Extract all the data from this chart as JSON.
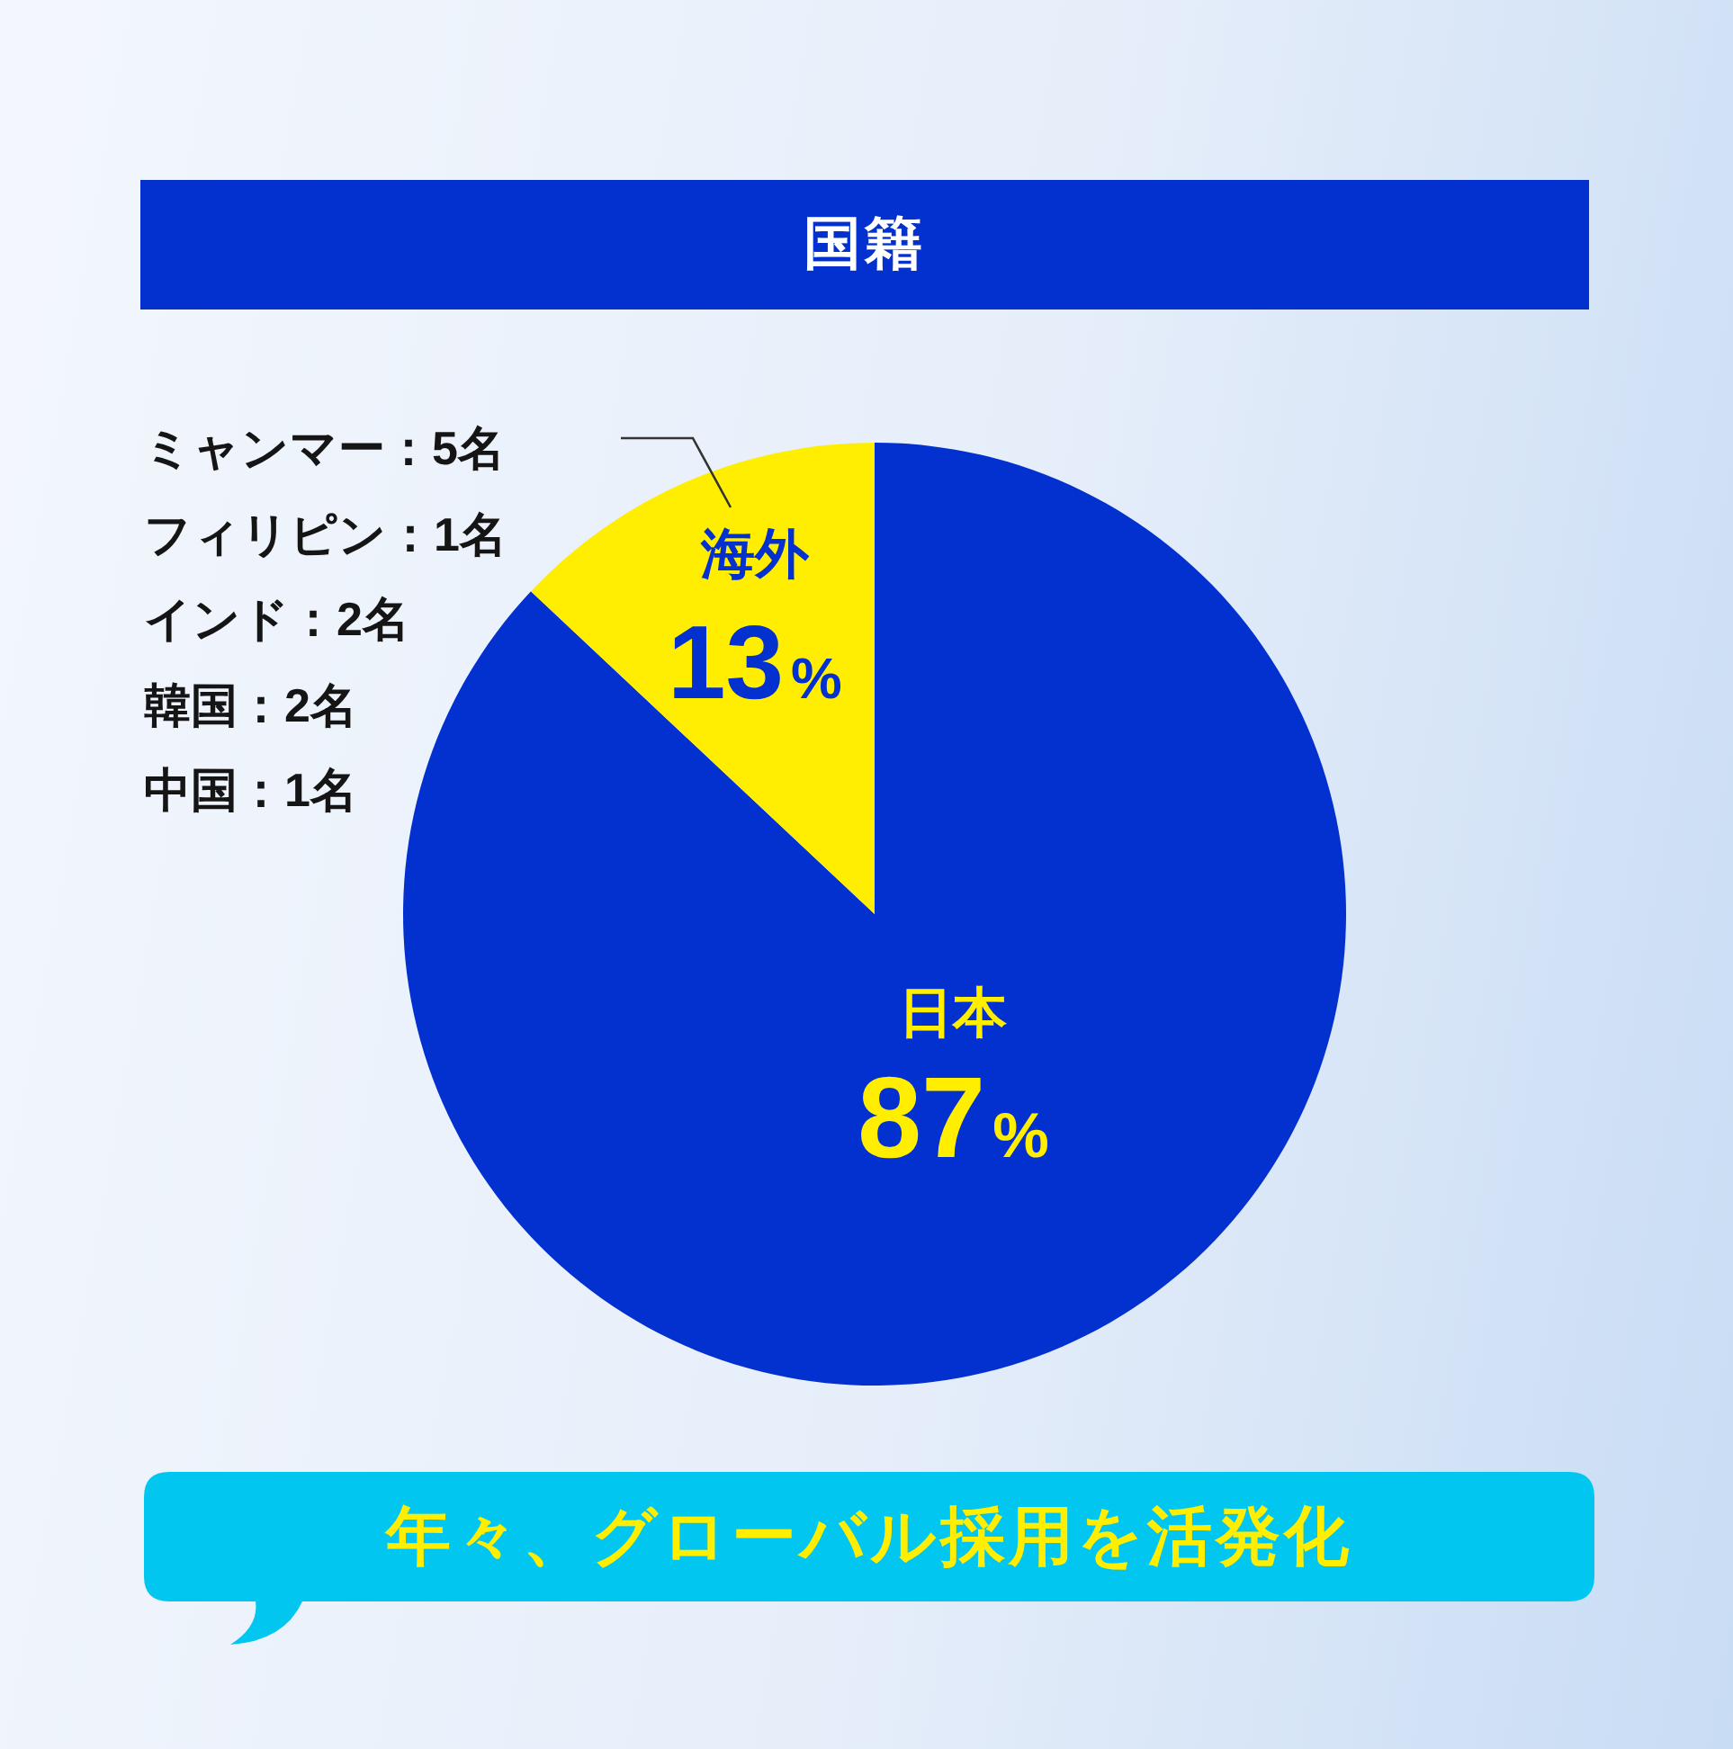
{
  "chart_data": {
    "type": "pie",
    "title": "国籍",
    "categories": [
      "日本",
      "海外"
    ],
    "values": [
      87,
      13
    ],
    "colors": [
      "#0331cf",
      "#ffee00"
    ],
    "value_labels": [
      "87%",
      "13%"
    ],
    "annotations": [
      "ミャンマー：5名",
      "フィリピン：1名",
      "インド：2名",
      "韓国：2名",
      "中国：1名",
      "年々、グローバル採用を活発化"
    ]
  }
}
